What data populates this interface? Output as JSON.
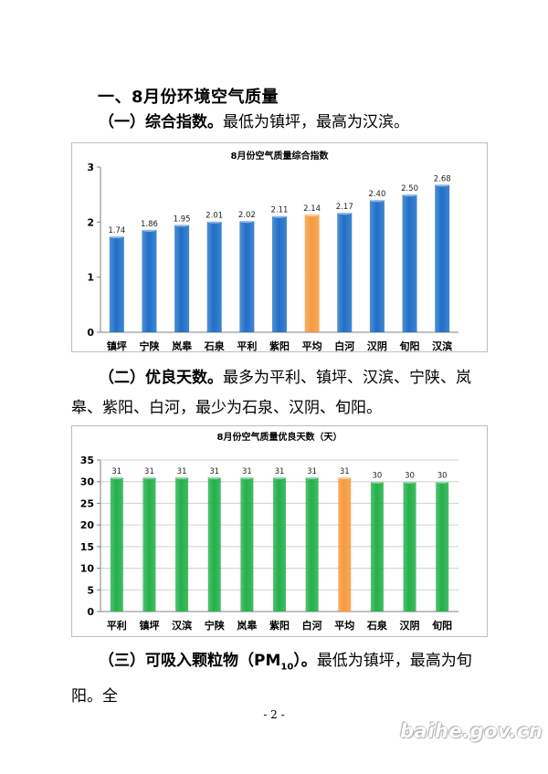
{
  "section_heading": "一、8月份环境空气质量",
  "para1": {
    "lead": "（一）综合指数。",
    "text": "最低为镇坪，最高为汉滨。"
  },
  "para2": {
    "lead": "（二）优良天数。",
    "text": "最多为平利、镇坪、汉滨、宁陕、岚皋、紫阳、白河，最少为石泉、汉阴、旬阳。"
  },
  "para3": {
    "lead": "（三）可吸入颗粒物（PM",
    "sub": "10",
    "tail": "）。",
    "text": "最低为镇坪，最高为旬阳。全"
  },
  "page_number": "- 2 -",
  "watermark": "baihe.gov.cn",
  "colors": {
    "blue": "#1f6fc8",
    "green": "#23b04b",
    "orange": "#f59a3e"
  },
  "chart_data": [
    {
      "type": "bar",
      "title": "8月份空气质量综合指数",
      "categories": [
        "镇坪",
        "宁陕",
        "岚皋",
        "石泉",
        "平利",
        "紫阳",
        "平均",
        "白河",
        "汉阴",
        "旬阳",
        "汉滨"
      ],
      "values": [
        1.74,
        1.86,
        1.95,
        2.01,
        2.02,
        2.11,
        2.14,
        2.17,
        2.4,
        2.5,
        2.68
      ],
      "value_labels": [
        "1.74",
        "1.86",
        "1.95",
        "2.01",
        "2.02",
        "2.11",
        "2.14",
        "2.17",
        "2.40",
        "2.50",
        "2.68"
      ],
      "highlight": "平均",
      "ylim": [
        0,
        3
      ],
      "yticks": [
        0,
        1,
        2,
        3
      ],
      "ytick_labels": [
        "0",
        "1",
        "2",
        "3"
      ],
      "grid": false,
      "bar_color": "#1f6fc8",
      "highlight_color": "#f59a3e"
    },
    {
      "type": "bar",
      "title": "8月份空气质量优良天数（天）",
      "categories": [
        "平利",
        "镇坪",
        "汉滨",
        "宁陕",
        "岚皋",
        "紫阳",
        "白河",
        "平均",
        "石泉",
        "汉阴",
        "旬阳"
      ],
      "values": [
        31,
        31,
        31,
        31,
        31,
        31,
        31,
        31,
        30,
        30,
        30
      ],
      "value_labels": [
        "31",
        "31",
        "31",
        "31",
        "31",
        "31",
        "31",
        "31",
        "30",
        "30",
        "30"
      ],
      "highlight": "平均",
      "ylim": [
        0,
        35
      ],
      "yticks": [
        0,
        5,
        10,
        15,
        20,
        25,
        30,
        35
      ],
      "ytick_labels": [
        "0",
        "5",
        "10",
        "15",
        "20",
        "25",
        "30",
        "35"
      ],
      "grid": true,
      "bar_color": "#23b04b",
      "highlight_color": "#f59a3e"
    }
  ]
}
